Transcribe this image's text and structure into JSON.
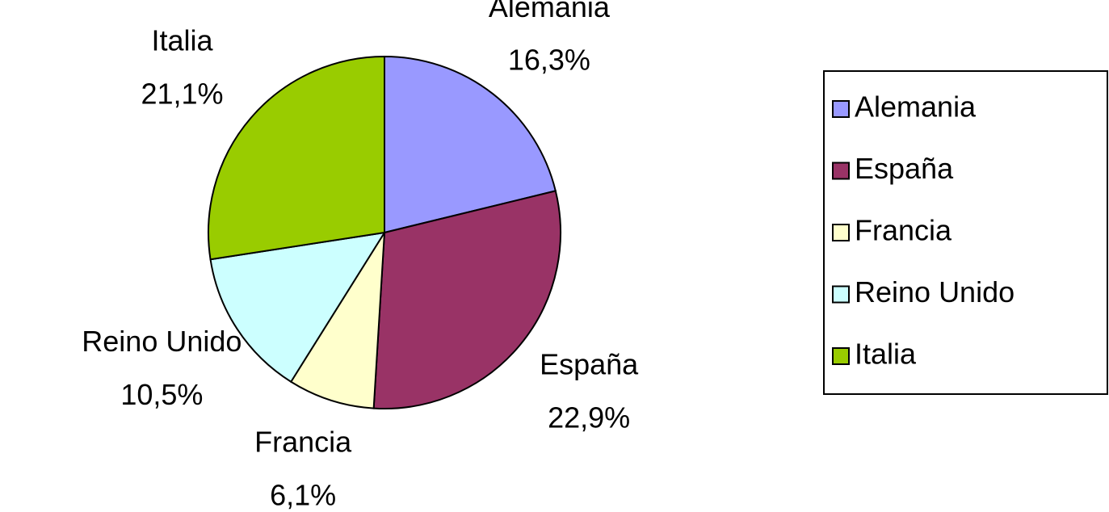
{
  "chart_data": {
    "type": "pie",
    "categories": [
      "Alemania",
      "España",
      "Francia",
      "Reino Unido",
      "Italia"
    ],
    "values": [
      16.3,
      22.9,
      6.1,
      10.5,
      21.1
    ],
    "value_labels": [
      "16,3%",
      "22,9%",
      "6,1%",
      "10,5%",
      "21,1%"
    ],
    "colors": [
      "#9999ff",
      "#993366",
      "#ffffcc",
      "#ccffff",
      "#99cc00"
    ],
    "legend": "right"
  }
}
